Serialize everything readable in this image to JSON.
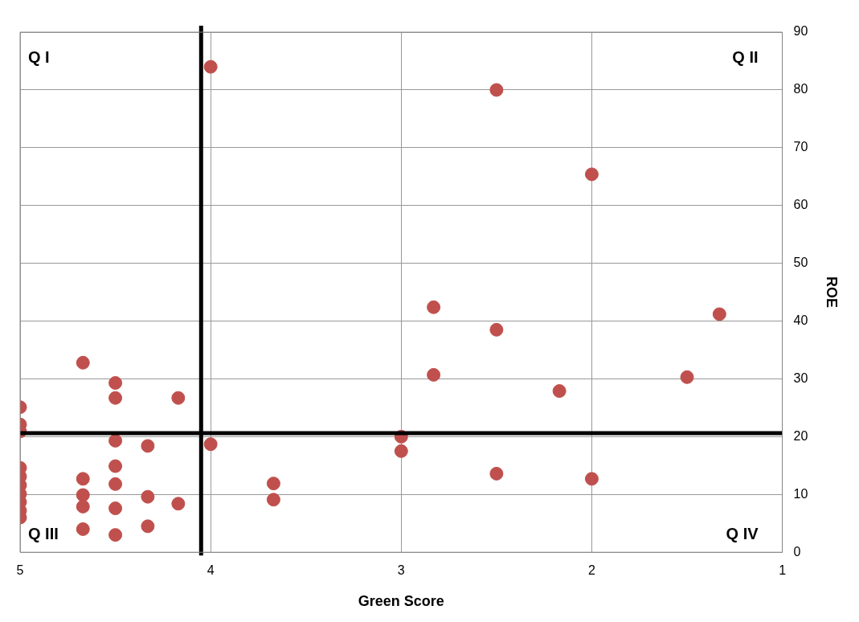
{
  "chart_data": {
    "type": "scatter",
    "xlabel": "Green Score",
    "ylabel": "ROE",
    "x": [
      4.0,
      2.5,
      2.0,
      2.83,
      2.5,
      1.33,
      2.83,
      1.5,
      2.17,
      3.0,
      3.0,
      2.5,
      2.0,
      3.67,
      3.67,
      4.0,
      4.67,
      4.5,
      4.5,
      4.17,
      5,
      5,
      5,
      4.5,
      4.33,
      5,
      5,
      5,
      5,
      5,
      5,
      5,
      4.67,
      4.67,
      4.67,
      4.67,
      4.5,
      4.5,
      4.5,
      4.5,
      4.33,
      4.33,
      4.17
    ],
    "series": [
      {
        "color": "#c0504d",
        "values": [
          84,
          80,
          65.4,
          42.4,
          38.5,
          41.2,
          30.7,
          30.3,
          27.9,
          20,
          17.5,
          13.6,
          12.7,
          11.9,
          9.1,
          18.7,
          32.8,
          29.3,
          26.7,
          26.7,
          25.1,
          22.1,
          20.9,
          19.3,
          18.4,
          14.6,
          13.1,
          11.6,
          10.1,
          8.7,
          7.2,
          6,
          12.7,
          9.9,
          7.9,
          4,
          14.9,
          11.8,
          7.6,
          3,
          9.6,
          4.5,
          8.4
        ]
      }
    ],
    "xlim": [
      5,
      1
    ],
    "xticks": [
      5,
      4,
      3,
      2,
      1
    ],
    "ylim": [
      0,
      90
    ],
    "yticks": [
      0,
      10,
      20,
      30,
      40,
      50,
      60,
      70,
      80,
      90
    ],
    "grid": true,
    "marker": "circle",
    "ref_lines": [
      {
        "axis": "x",
        "value": 4.05,
        "color": "#000000"
      },
      {
        "axis": "y",
        "value": 20.6,
        "color": "#000000"
      }
    ],
    "annotations": [
      "Q I",
      "Q II",
      "Q III",
      "Q IV"
    ]
  }
}
